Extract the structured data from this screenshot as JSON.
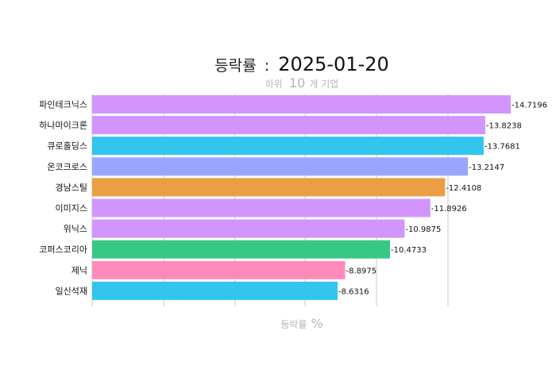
{
  "chart_data": {
    "type": "bar",
    "orientation": "horizontal",
    "title": {
      "label": "등락률",
      "separator": ":",
      "date": "2025-01-20"
    },
    "subtitle": {
      "prefix": "하위",
      "number": "10",
      "suffix": "개 기업"
    },
    "xlabel": {
      "text": "등락률",
      "unit": "%"
    },
    "ylabel": "",
    "xlim": [
      0,
      14.7196
    ],
    "grid": true,
    "legend": "none",
    "categories": [
      "파인테크닉스",
      "하나마이크론",
      "큐로홀딩스",
      "온코크로스",
      "경남스틸",
      "이미지스",
      "위닉스",
      "코퍼스코리아",
      "제닉",
      "일신석재"
    ],
    "values": [
      -14.7196,
      -13.8238,
      -13.7681,
      -13.2147,
      -12.4108,
      -11.8926,
      -10.9875,
      -10.4733,
      -8.8975,
      -8.6316
    ],
    "value_labels": [
      "-14.7196",
      "-13.8238",
      "-13.7681",
      "-13.2147",
      "-12.4108",
      "-11.8926",
      "-10.9875",
      "-10.4733",
      "-8.8975",
      "-8.6316"
    ],
    "colors": [
      "#d294fd",
      "#d294fd",
      "#32c5ee",
      "#9aa6fe",
      "#ec9e43",
      "#d294fd",
      "#d294fd",
      "#37c886",
      "#fe8ab9",
      "#32c5ee"
    ]
  }
}
